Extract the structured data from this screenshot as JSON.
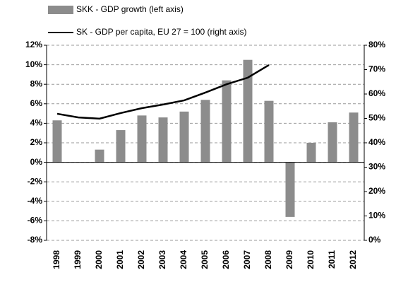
{
  "chart_data": {
    "type": "bar_line",
    "categories": [
      "1998",
      "1999",
      "2000",
      "2001",
      "2002",
      "2003",
      "2004",
      "2005",
      "2006",
      "2007",
      "2008",
      "2009",
      "2010",
      "2011",
      "2012"
    ],
    "series": [
      {
        "name": "SKK - GDP growth (left axis)",
        "color": "#8c8c8c",
        "type": "bar",
        "values": [
          4.3,
          0,
          1.3,
          3.3,
          4.8,
          4.6,
          5.2,
          6.4,
          8.4,
          10.5,
          6.3,
          -5.6,
          2.0,
          4.1,
          5.1
        ]
      },
      {
        "name": "SK - GDP per capita, EU 27 = 100 (right axis)",
        "color": "#000000",
        "type": "line",
        "axis": "y2",
        "values": [
          51.9,
          50.4,
          49.9,
          52.2,
          54.2,
          55.7,
          57.4,
          60.6,
          64.0,
          66.7,
          71.9,
          null,
          null,
          null,
          null
        ]
      }
    ],
    "ylim": [
      -8,
      12
    ],
    "yticks": [
      {
        "value": -8,
        "label": "-8%"
      },
      {
        "value": -6,
        "label": "-6%"
      },
      {
        "value": -4,
        "label": "-4%"
      },
      {
        "value": -2,
        "label": "-2%"
      },
      {
        "value": 0,
        "label": "0%"
      },
      {
        "value": 2,
        "label": "2%"
      },
      {
        "value": 4,
        "label": "4%"
      },
      {
        "value": 6,
        "label": "6%"
      },
      {
        "value": 8,
        "label": "8%"
      },
      {
        "value": 10,
        "label": "10%"
      },
      {
        "value": 12,
        "label": "12%"
      }
    ],
    "y2lim": [
      0,
      80
    ],
    "y2ticks": [
      {
        "value": 0,
        "label": "0%"
      },
      {
        "value": 10,
        "label": "10%"
      },
      {
        "value": 20,
        "label": "20%"
      },
      {
        "value": 30,
        "label": "30%"
      },
      {
        "value": 40,
        "label": "40%"
      },
      {
        "value": 50,
        "label": "50%"
      },
      {
        "value": 60,
        "label": "60%"
      },
      {
        "value": 70,
        "label": "70%"
      },
      {
        "value": 80,
        "label": "80%"
      }
    ],
    "grid": true
  }
}
